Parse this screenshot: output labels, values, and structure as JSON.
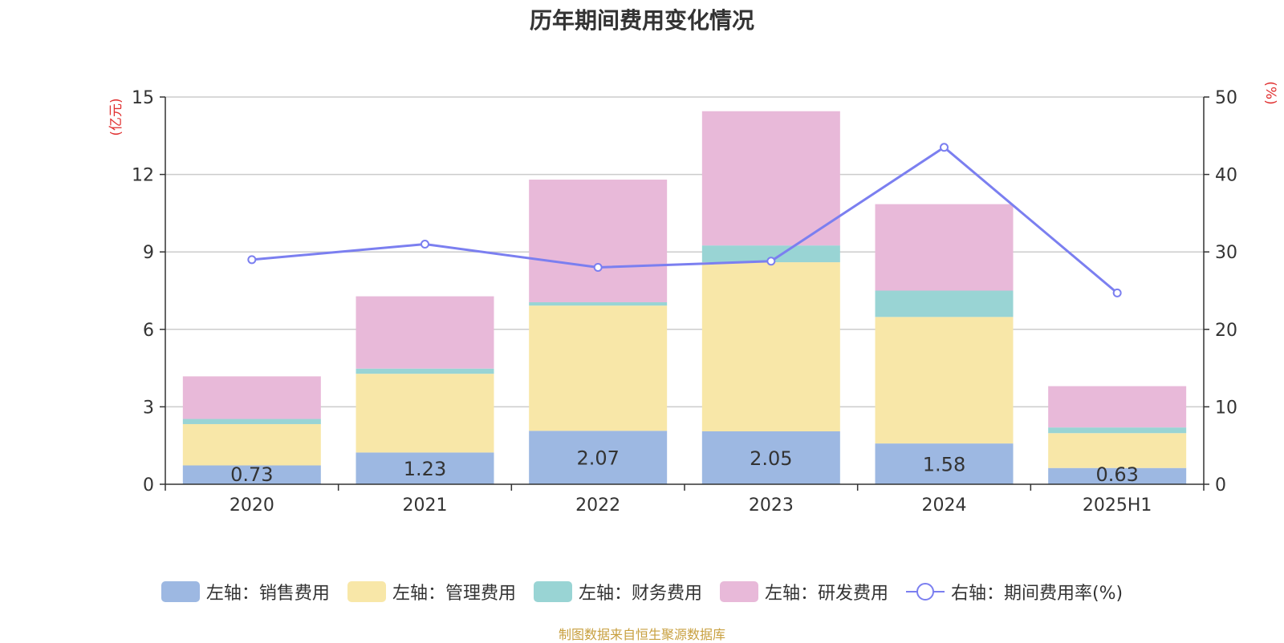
{
  "title": "历年期间费用变化情况",
  "source": "制图数据来自恒生聚源数据库",
  "colors": {
    "sales": "#9db8e2",
    "admin": "#f8e7a8",
    "finance": "#99d4d4",
    "rd": "#e8b9d9",
    "rate": "#7b7ff0",
    "axis_unit": "#e03030",
    "grid": "#cccccc",
    "text": "#333333"
  },
  "legend": [
    {
      "label": "左轴：销售费用",
      "color": "#9db8e2",
      "kind": "bar"
    },
    {
      "label": "左轴：管理费用",
      "color": "#f8e7a8",
      "kind": "bar"
    },
    {
      "label": "左轴：财务费用",
      "color": "#99d4d4",
      "kind": "bar"
    },
    {
      "label": "左轴：研发费用",
      "color": "#e8b9d9",
      "kind": "bar"
    },
    {
      "label": "右轴：期间费用率(%)",
      "color": "#7b7ff0",
      "kind": "line"
    }
  ],
  "chart_data": {
    "type": "bar",
    "title": "历年期间费用变化情况",
    "categories": [
      "2020",
      "2021",
      "2022",
      "2023",
      "2024",
      "2025H1"
    ],
    "left_axis": {
      "unit_label": "(亿元)",
      "range": [
        0,
        15
      ],
      "ticks": [
        0,
        3,
        6,
        9,
        12,
        15
      ]
    },
    "right_axis": {
      "unit_label": "(%)",
      "range": [
        0,
        50
      ],
      "ticks": [
        0,
        10,
        20,
        30,
        40,
        50
      ]
    },
    "grid": true,
    "legend_position": "bottom",
    "stacked": true,
    "series": [
      {
        "name": "左轴：销售费用",
        "axis": "left",
        "type": "bar",
        "values": [
          0.73,
          1.23,
          2.07,
          2.05,
          1.58,
          0.63
        ],
        "labels_shown": true
      },
      {
        "name": "左轴：管理费用",
        "axis": "left",
        "type": "bar",
        "values": [
          1.6,
          3.05,
          4.85,
          6.55,
          4.9,
          1.35
        ]
      },
      {
        "name": "左轴：财务费用",
        "axis": "left",
        "type": "bar",
        "values": [
          0.2,
          0.2,
          0.13,
          0.65,
          1.02,
          0.22
        ]
      },
      {
        "name": "左轴：研发费用",
        "axis": "left",
        "type": "bar",
        "values": [
          1.65,
          2.8,
          4.75,
          5.2,
          3.35,
          1.6
        ]
      },
      {
        "name": "右轴：期间费用率(%)",
        "axis": "right",
        "type": "line",
        "values": [
          29.0,
          31.0,
          28.0,
          28.8,
          43.5,
          24.7
        ]
      }
    ]
  }
}
